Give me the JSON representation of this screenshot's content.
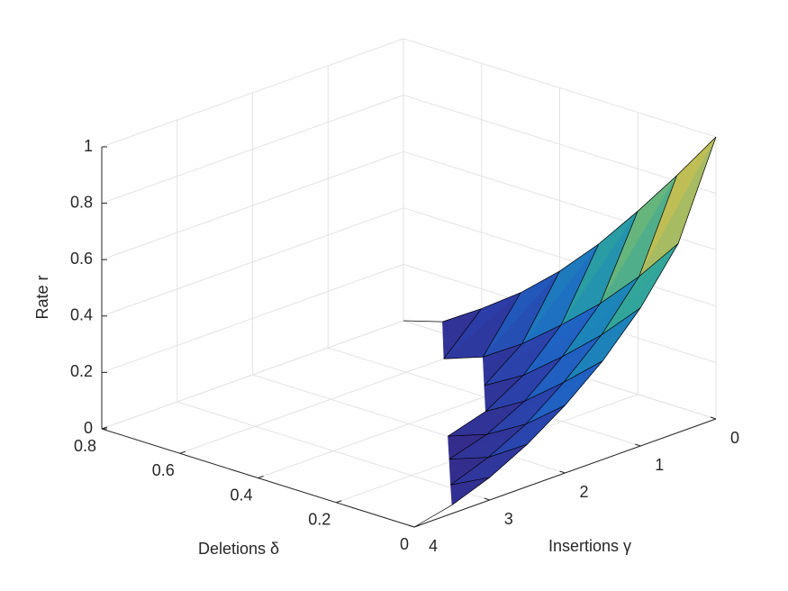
{
  "chart_data": {
    "type": "surface",
    "x_label": "Insertions γ",
    "y_label": "Deletions δ",
    "z_label": "Rate r",
    "x": [
      0,
      0.5,
      1,
      1.5,
      2,
      2.5,
      3,
      3.5,
      4
    ],
    "y": [
      0,
      0.1,
      0.2,
      0.3,
      0.4,
      0.5,
      0.6,
      0.7,
      0.8
    ],
    "z": [
      [
        1,
        0.67,
        0.49,
        0.35,
        0.24,
        0.15,
        0.08,
        0.03,
        0
      ],
      [
        0.82,
        0.51,
        0.35,
        0.23,
        0.13,
        0.06,
        0.01,
        null,
        null
      ],
      [
        0.65,
        0.37,
        0.23,
        0.12,
        0.05,
        0.01,
        null,
        null,
        null
      ],
      [
        0.49,
        0.25,
        0.12,
        0.04,
        0,
        null,
        null,
        null,
        null
      ],
      [
        0.35,
        0.14,
        0.04,
        null,
        null,
        null,
        null,
        null,
        null
      ],
      [
        0.23,
        0.05,
        null,
        null,
        null,
        null,
        null,
        null,
        null
      ],
      [
        0.13,
        0,
        null,
        null,
        null,
        null,
        null,
        null,
        null
      ],
      [
        0.04,
        null,
        null,
        null,
        null,
        null,
        null,
        null,
        null
      ],
      [
        0,
        null,
        null,
        null,
        null,
        null,
        null,
        null,
        null
      ]
    ],
    "xlim": [
      0,
      4
    ],
    "xticks": [
      0,
      1,
      2,
      3,
      4
    ],
    "ylim": [
      0,
      0.8
    ],
    "yticks": [
      0,
      0.2,
      0.4,
      0.6,
      0.8
    ],
    "zlim": [
      0,
      1
    ],
    "zticks": [
      0,
      0.2,
      0.4,
      0.6,
      0.8,
      1
    ],
    "grid": true,
    "colormap": [
      "#352a87",
      "#2c3ea8",
      "#1f64c4",
      "#1d87b8",
      "#2fa59c",
      "#6cb77a",
      "#b5bd5c",
      "#e6c23c",
      "#f5e33a"
    ],
    "edge_color": "#000000"
  }
}
